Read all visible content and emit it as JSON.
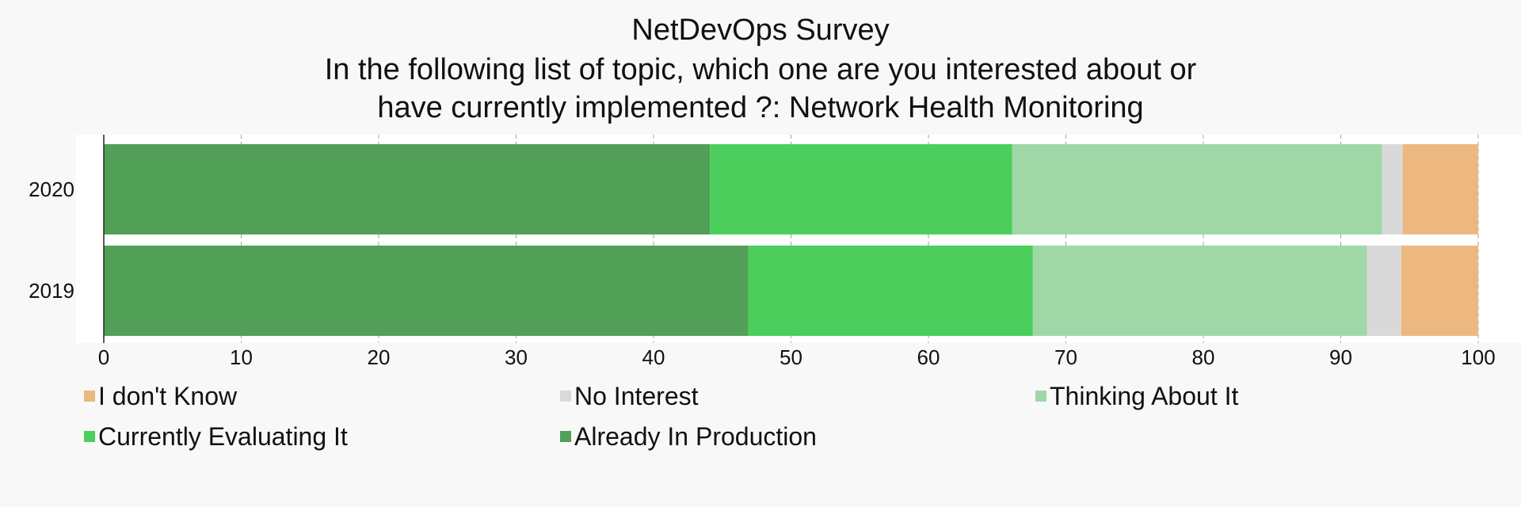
{
  "title_lines": [
    "NetDevOps Survey",
    "In the following list of topic, which one are you interested about or",
    "have currently implemented ?: Network Health Monitoring"
  ],
  "chart_data": {
    "type": "bar",
    "orientation": "horizontal",
    "stacked": true,
    "title": "NetDevOps Survey In the following list of topic, which one are you interested about or have currently implemented ?: Network Health Monitoring",
    "categories": [
      "2020",
      "2019"
    ],
    "series": [
      {
        "name": "Already In Production",
        "color": "#52a058",
        "values": [
          44.1,
          46.9
        ]
      },
      {
        "name": "Currently Evaluating It",
        "color": "#4cce5c",
        "values": [
          22.0,
          20.7
        ]
      },
      {
        "name": "Thinking About It",
        "color": "#9fd8a6",
        "values": [
          26.9,
          24.3
        ]
      },
      {
        "name": "No Interest",
        "color": "#d9d9d9",
        "values": [
          1.5,
          2.5
        ]
      },
      {
        "name": "I don't Know",
        "color": "#ecb880",
        "values": [
          5.5,
          5.6
        ]
      }
    ],
    "xlim": [
      0,
      100
    ],
    "xticks": [
      0,
      10,
      20,
      30,
      40,
      50,
      60,
      70,
      80,
      90,
      100
    ],
    "grid": true,
    "legend": {
      "position": "bottom",
      "order": [
        "I don't Know",
        "No Interest",
        "Thinking About It",
        "Currently Evaluating It",
        "Already In Production"
      ]
    }
  }
}
